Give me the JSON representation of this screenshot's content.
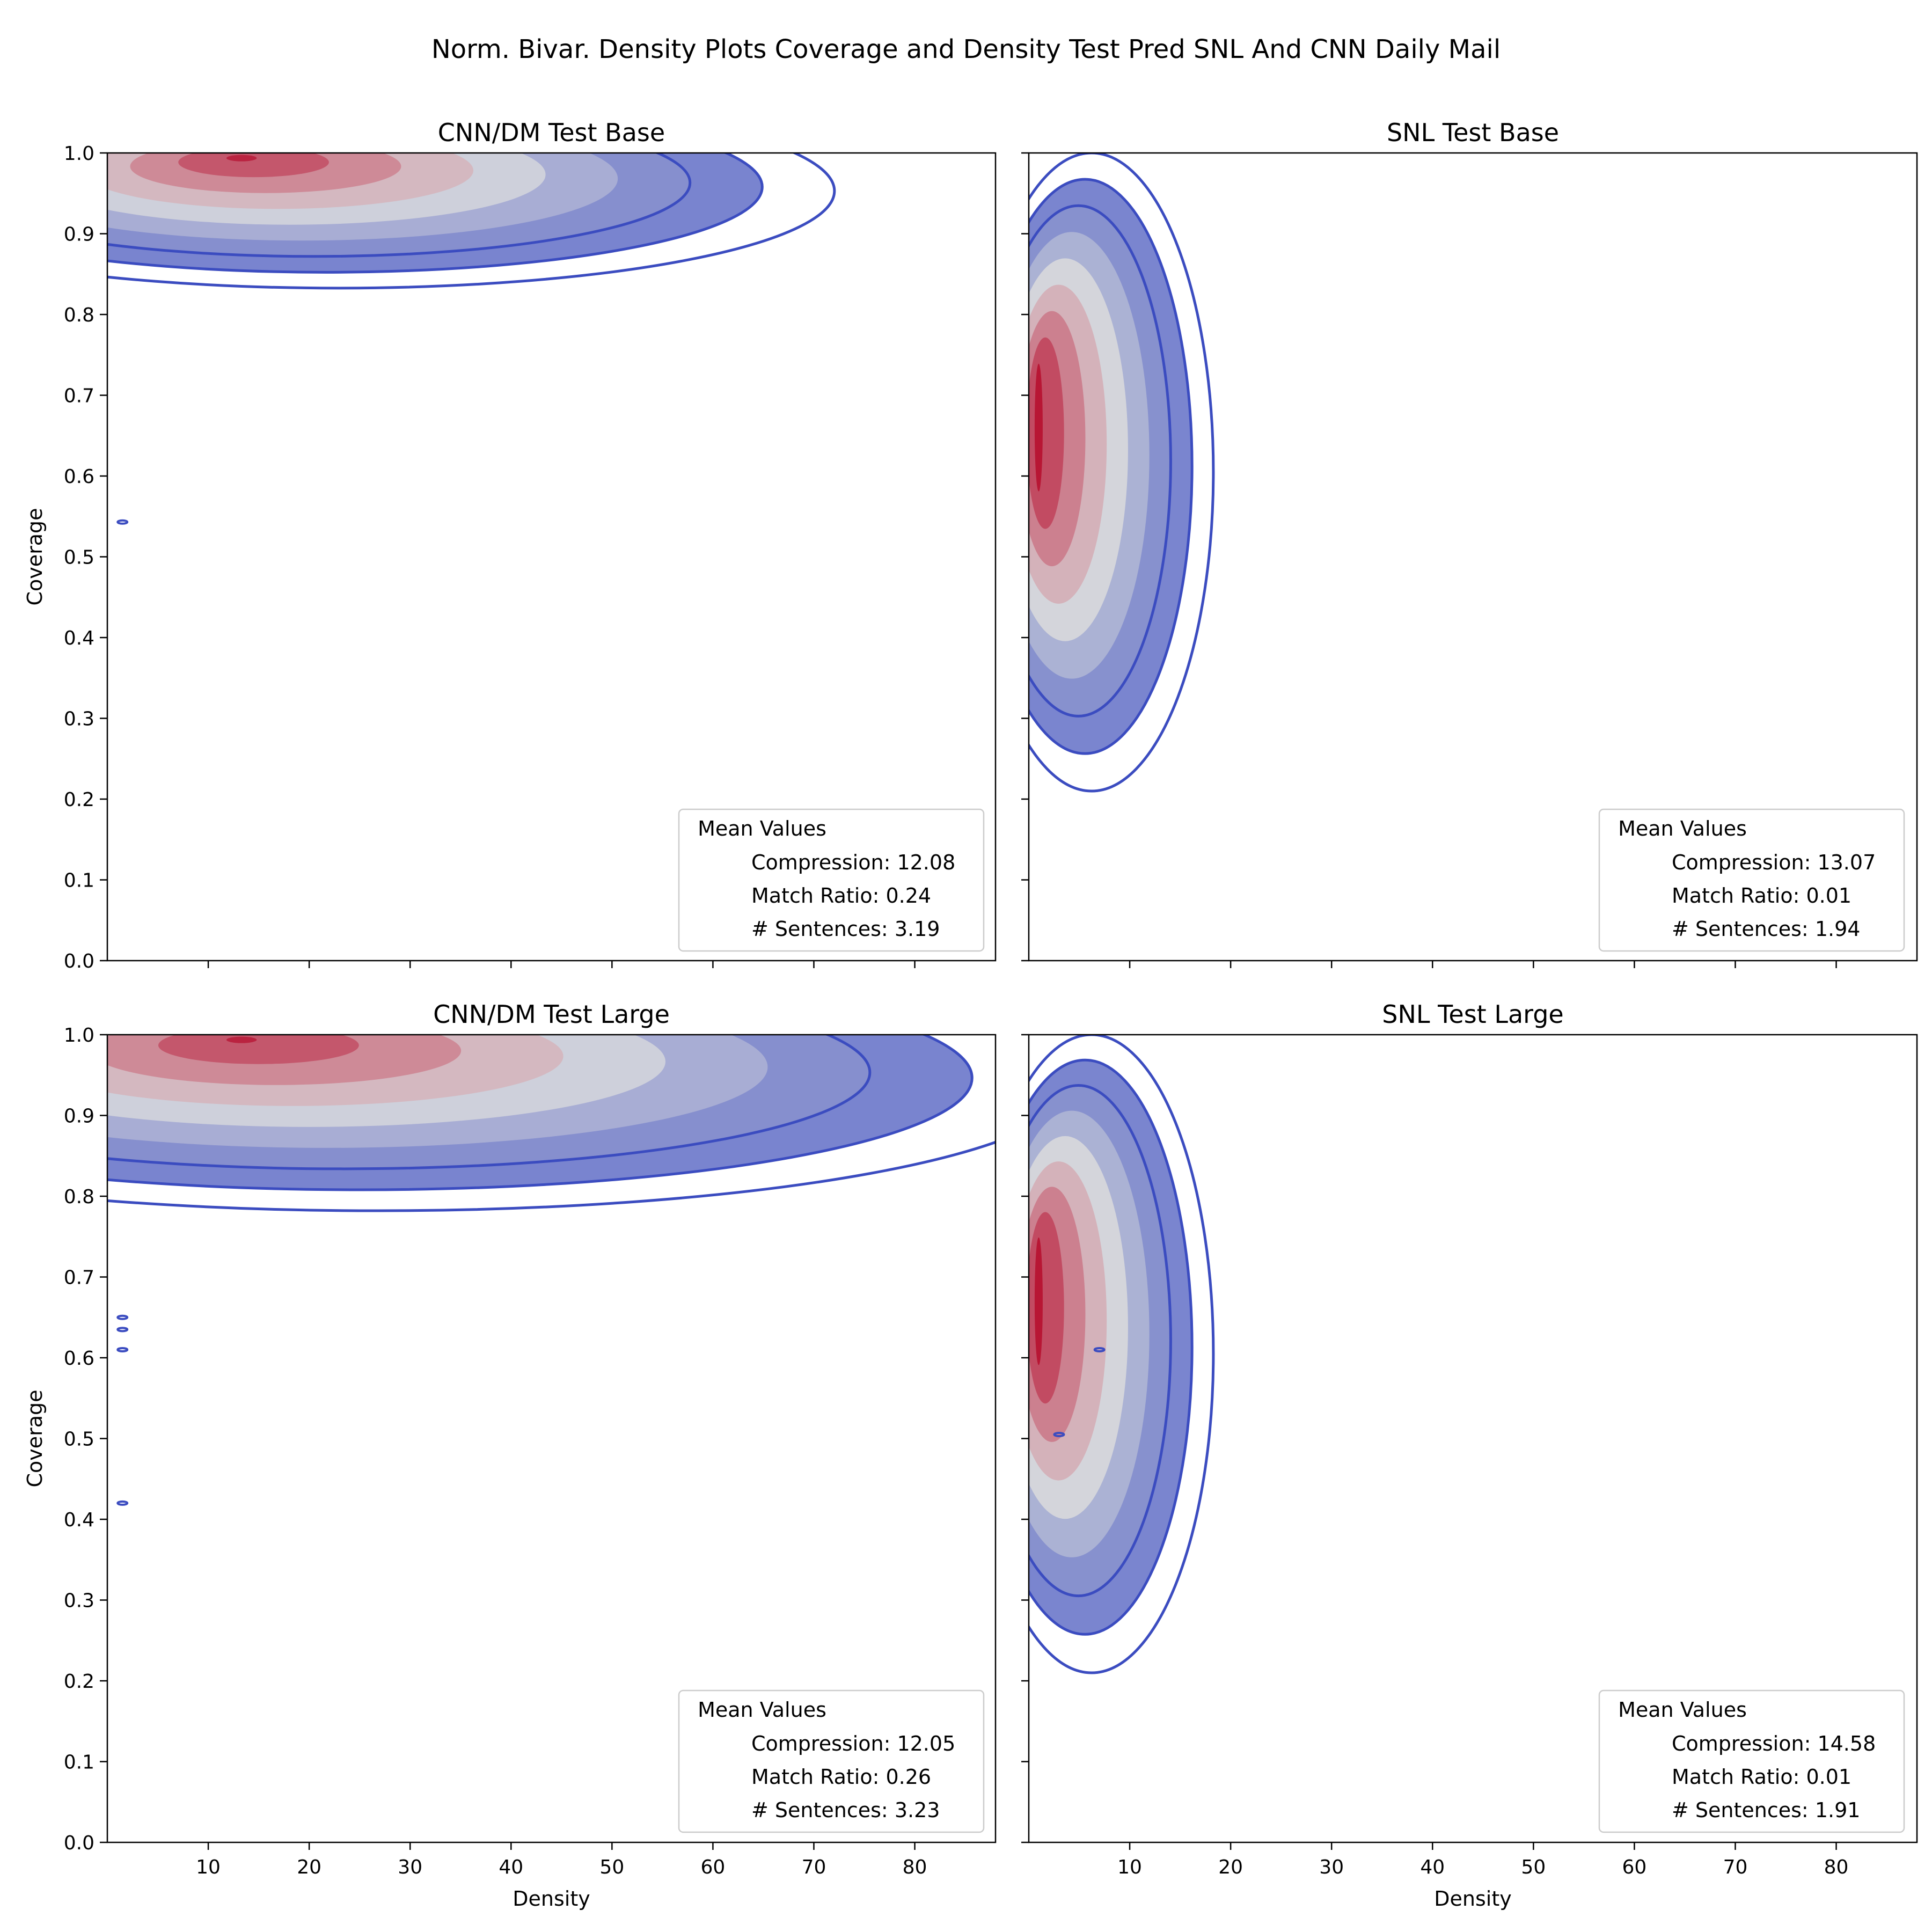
{
  "figure": {
    "title": "Norm. Bivar. Density Plots Coverage and Density Test Pred SNL And CNN Daily Mail"
  },
  "colors": {
    "contour_low": "#3b4cc0",
    "contour_mid": "#dddddd",
    "contour_high": "#b40426",
    "axes": "#000000",
    "legend_border": "#cccccc"
  },
  "chart_data": [
    {
      "type": "contour",
      "title": "CNN/DM Test Base",
      "xlabel": "",
      "ylabel": "Coverage",
      "xlim": [
        0,
        88
      ],
      "ylim": [
        0.0,
        1.0
      ],
      "xticks": [
        10,
        20,
        30,
        40,
        50,
        60,
        70,
        80
      ],
      "yticks": [
        0.0,
        0.1,
        0.2,
        0.3,
        0.4,
        0.5,
        0.6,
        0.7,
        0.8,
        0.9,
        1.0
      ],
      "show_xtick_labels": false,
      "density_peak": {
        "x": 13,
        "y": 0.995
      },
      "density_range": {
        "x": [
          1,
          66
        ],
        "y": [
          0.84,
          1.0
        ]
      },
      "outliers": [
        {
          "x": 1.5,
          "y": 0.543
        }
      ],
      "legend": {
        "title": "Mean Values",
        "placement": "lower right",
        "entries": [
          "Compression: 12.08",
          "Match Ratio: 0.24",
          "# Sentences: 3.19"
        ]
      }
    },
    {
      "type": "contour",
      "title": "SNL Test Base",
      "xlabel": "",
      "ylabel": "",
      "xlim": [
        0,
        88
      ],
      "ylim": [
        0.0,
        1.0
      ],
      "xticks": [
        10,
        20,
        30,
        40,
        50,
        60,
        70,
        80
      ],
      "yticks": [
        0.0,
        0.1,
        0.2,
        0.3,
        0.4,
        0.5,
        0.6,
        0.7,
        0.8,
        0.9,
        1.0
      ],
      "show_xtick_labels": false,
      "density_peak": {
        "x": 0.8,
        "y": 0.66
      },
      "density_range": {
        "x": [
          0,
          22
        ],
        "y": [
          0.21,
          1.0
        ]
      },
      "outliers": [],
      "legend": {
        "title": "Mean Values",
        "placement": "lower right",
        "entries": [
          "Compression: 13.07",
          "Match Ratio: 0.01",
          "# Sentences: 1.94"
        ]
      }
    },
    {
      "type": "contour",
      "title": "CNN/DM Test Large",
      "xlabel": "Density",
      "ylabel": "Coverage",
      "xlim": [
        0,
        88
      ],
      "ylim": [
        0.0,
        1.0
      ],
      "xticks": [
        10,
        20,
        30,
        40,
        50,
        60,
        70,
        80
      ],
      "yticks": [
        0.0,
        0.1,
        0.2,
        0.3,
        0.4,
        0.5,
        0.6,
        0.7,
        0.8,
        0.9,
        1.0
      ],
      "show_xtick_labels": true,
      "density_peak": {
        "x": 13,
        "y": 0.995
      },
      "density_range": {
        "x": [
          1,
          88
        ],
        "y": [
          0.79,
          1.0
        ]
      },
      "outliers": [
        {
          "x": 1.5,
          "y": 0.42
        },
        {
          "x": 1.5,
          "y": 0.61
        },
        {
          "x": 1.5,
          "y": 0.635
        },
        {
          "x": 1.5,
          "y": 0.65
        }
      ],
      "legend": {
        "title": "Mean Values",
        "placement": "lower right",
        "entries": [
          "Compression: 12.05",
          "Match Ratio: 0.26",
          "# Sentences: 3.23"
        ]
      }
    },
    {
      "type": "contour",
      "title": "SNL Test Large",
      "xlabel": "Density",
      "ylabel": "",
      "xlim": [
        0,
        88
      ],
      "ylim": [
        0.0,
        1.0
      ],
      "xticks": [
        10,
        20,
        30,
        40,
        50,
        60,
        70,
        80
      ],
      "yticks": [
        0.0,
        0.1,
        0.2,
        0.3,
        0.4,
        0.5,
        0.6,
        0.7,
        0.8,
        0.9,
        1.0
      ],
      "show_xtick_labels": true,
      "density_peak": {
        "x": 0.8,
        "y": 0.67
      },
      "density_range": {
        "x": [
          0,
          22
        ],
        "y": [
          0.21,
          1.0
        ]
      },
      "outliers": [
        {
          "x": 3,
          "y": 0.505
        },
        {
          "x": 7,
          "y": 0.61
        }
      ],
      "legend": {
        "title": "Mean Values",
        "placement": "lower right",
        "entries": [
          "Compression: 14.58",
          "Match Ratio: 0.01",
          "# Sentences: 1.91"
        ]
      }
    }
  ]
}
